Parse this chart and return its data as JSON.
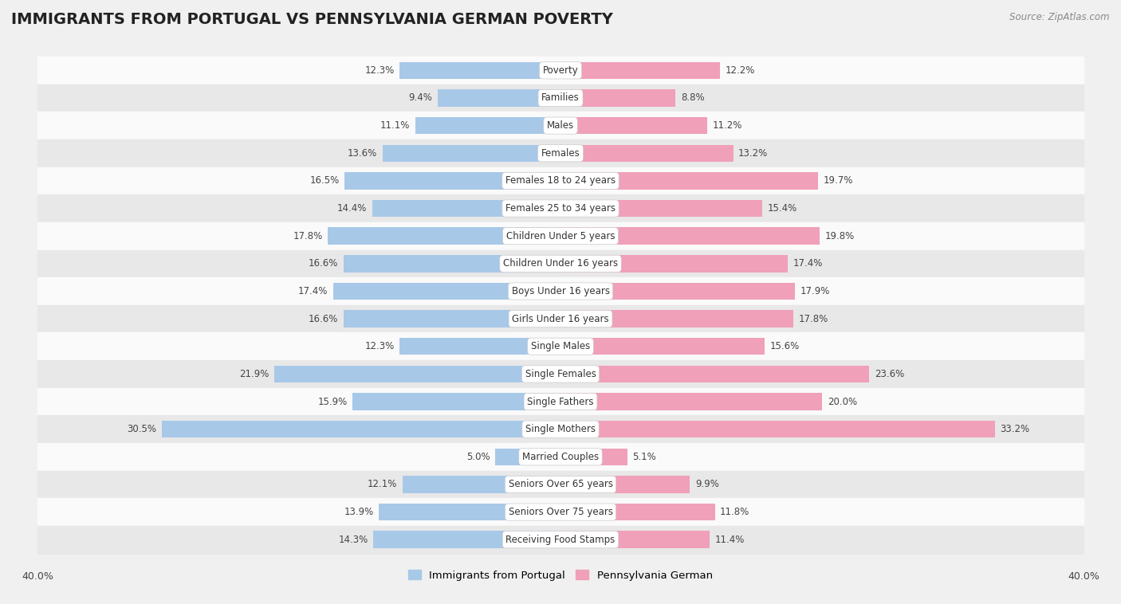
{
  "title": "IMMIGRANTS FROM PORTUGAL VS PENNSYLVANIA GERMAN POVERTY",
  "source": "Source: ZipAtlas.com",
  "categories": [
    "Poverty",
    "Families",
    "Males",
    "Females",
    "Females 18 to 24 years",
    "Females 25 to 34 years",
    "Children Under 5 years",
    "Children Under 16 years",
    "Boys Under 16 years",
    "Girls Under 16 years",
    "Single Males",
    "Single Females",
    "Single Fathers",
    "Single Mothers",
    "Married Couples",
    "Seniors Over 65 years",
    "Seniors Over 75 years",
    "Receiving Food Stamps"
  ],
  "left_values": [
    12.3,
    9.4,
    11.1,
    13.6,
    16.5,
    14.4,
    17.8,
    16.6,
    17.4,
    16.6,
    12.3,
    21.9,
    15.9,
    30.5,
    5.0,
    12.1,
    13.9,
    14.3
  ],
  "right_values": [
    12.2,
    8.8,
    11.2,
    13.2,
    19.7,
    15.4,
    19.8,
    17.4,
    17.9,
    17.8,
    15.6,
    23.6,
    20.0,
    33.2,
    5.1,
    9.9,
    11.8,
    11.4
  ],
  "left_color": "#a8c8e8",
  "right_color": "#f0a0b8",
  "left_label": "Immigrants from Portugal",
  "right_label": "Pennsylvania German",
  "xlim": 40.0,
  "bg_color": "#f0f0f0",
  "row_light_color": "#fafafa",
  "row_dark_color": "#e8e8e8",
  "title_fontsize": 14,
  "label_fontsize": 8.5,
  "value_fontsize": 8.5,
  "axis_label_fontsize": 9
}
